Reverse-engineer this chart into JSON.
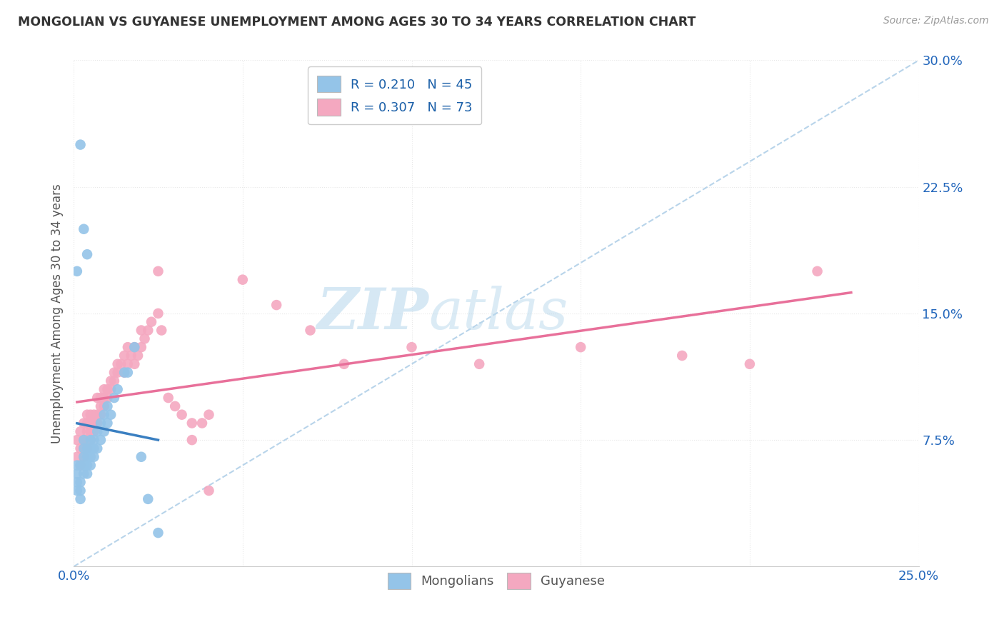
{
  "title": "MONGOLIAN VS GUYANESE UNEMPLOYMENT AMONG AGES 30 TO 34 YEARS CORRELATION CHART",
  "source": "Source: ZipAtlas.com",
  "ylabel": "Unemployment Among Ages 30 to 34 years",
  "xlim": [
    0.0,
    0.25
  ],
  "ylim": [
    0.0,
    0.3
  ],
  "xticks": [
    0.0,
    0.05,
    0.1,
    0.15,
    0.2,
    0.25
  ],
  "yticks": [
    0.0,
    0.075,
    0.15,
    0.225,
    0.3
  ],
  "mongolian_color": "#94c4e8",
  "guyanese_color": "#f4a8c0",
  "mongolian_line_color": "#3a7fc1",
  "guyanese_line_color": "#e8709a",
  "dashed_line_color": "#b8d4ea",
  "mongolian_scatter_x": [
    0.001,
    0.001,
    0.001,
    0.001,
    0.002,
    0.002,
    0.002,
    0.002,
    0.003,
    0.003,
    0.003,
    0.003,
    0.003,
    0.004,
    0.004,
    0.004,
    0.004,
    0.005,
    0.005,
    0.005,
    0.005,
    0.006,
    0.006,
    0.006,
    0.007,
    0.007,
    0.008,
    0.008,
    0.009,
    0.009,
    0.01,
    0.01,
    0.011,
    0.012,
    0.013,
    0.015,
    0.016,
    0.018,
    0.02,
    0.022,
    0.025,
    0.003,
    0.004,
    0.001,
    0.002
  ],
  "mongolian_scatter_y": [
    0.045,
    0.05,
    0.055,
    0.06,
    0.04,
    0.045,
    0.05,
    0.06,
    0.055,
    0.06,
    0.065,
    0.07,
    0.075,
    0.055,
    0.06,
    0.065,
    0.07,
    0.06,
    0.065,
    0.07,
    0.075,
    0.065,
    0.07,
    0.075,
    0.07,
    0.08,
    0.075,
    0.085,
    0.08,
    0.09,
    0.085,
    0.095,
    0.09,
    0.1,
    0.105,
    0.115,
    0.115,
    0.13,
    0.065,
    0.04,
    0.02,
    0.2,
    0.185,
    0.175,
    0.25
  ],
  "guyanese_scatter_x": [
    0.001,
    0.001,
    0.002,
    0.002,
    0.002,
    0.003,
    0.003,
    0.003,
    0.003,
    0.004,
    0.004,
    0.004,
    0.004,
    0.004,
    0.005,
    0.005,
    0.005,
    0.005,
    0.006,
    0.006,
    0.006,
    0.007,
    0.007,
    0.007,
    0.008,
    0.008,
    0.008,
    0.009,
    0.009,
    0.009,
    0.01,
    0.01,
    0.011,
    0.011,
    0.012,
    0.012,
    0.013,
    0.013,
    0.014,
    0.015,
    0.015,
    0.016,
    0.016,
    0.017,
    0.018,
    0.018,
    0.019,
    0.02,
    0.02,
    0.021,
    0.022,
    0.023,
    0.025,
    0.026,
    0.028,
    0.03,
    0.032,
    0.035,
    0.038,
    0.04,
    0.05,
    0.06,
    0.07,
    0.08,
    0.1,
    0.12,
    0.15,
    0.18,
    0.2,
    0.22,
    0.025,
    0.035,
    0.04
  ],
  "guyanese_scatter_y": [
    0.065,
    0.075,
    0.06,
    0.07,
    0.08,
    0.065,
    0.07,
    0.075,
    0.085,
    0.07,
    0.075,
    0.08,
    0.085,
    0.09,
    0.075,
    0.08,
    0.085,
    0.09,
    0.08,
    0.085,
    0.09,
    0.085,
    0.09,
    0.1,
    0.09,
    0.095,
    0.1,
    0.095,
    0.1,
    0.105,
    0.1,
    0.105,
    0.105,
    0.11,
    0.11,
    0.115,
    0.115,
    0.12,
    0.12,
    0.115,
    0.125,
    0.12,
    0.13,
    0.125,
    0.12,
    0.13,
    0.125,
    0.13,
    0.14,
    0.135,
    0.14,
    0.145,
    0.15,
    0.14,
    0.1,
    0.095,
    0.09,
    0.085,
    0.085,
    0.09,
    0.17,
    0.155,
    0.14,
    0.12,
    0.13,
    0.12,
    0.13,
    0.125,
    0.12,
    0.175,
    0.175,
    0.075,
    0.045
  ],
  "watermark_zip": "ZIP",
  "watermark_atlas": "atlas",
  "background_color": "#ffffff",
  "grid_color": "#e8e8e8"
}
